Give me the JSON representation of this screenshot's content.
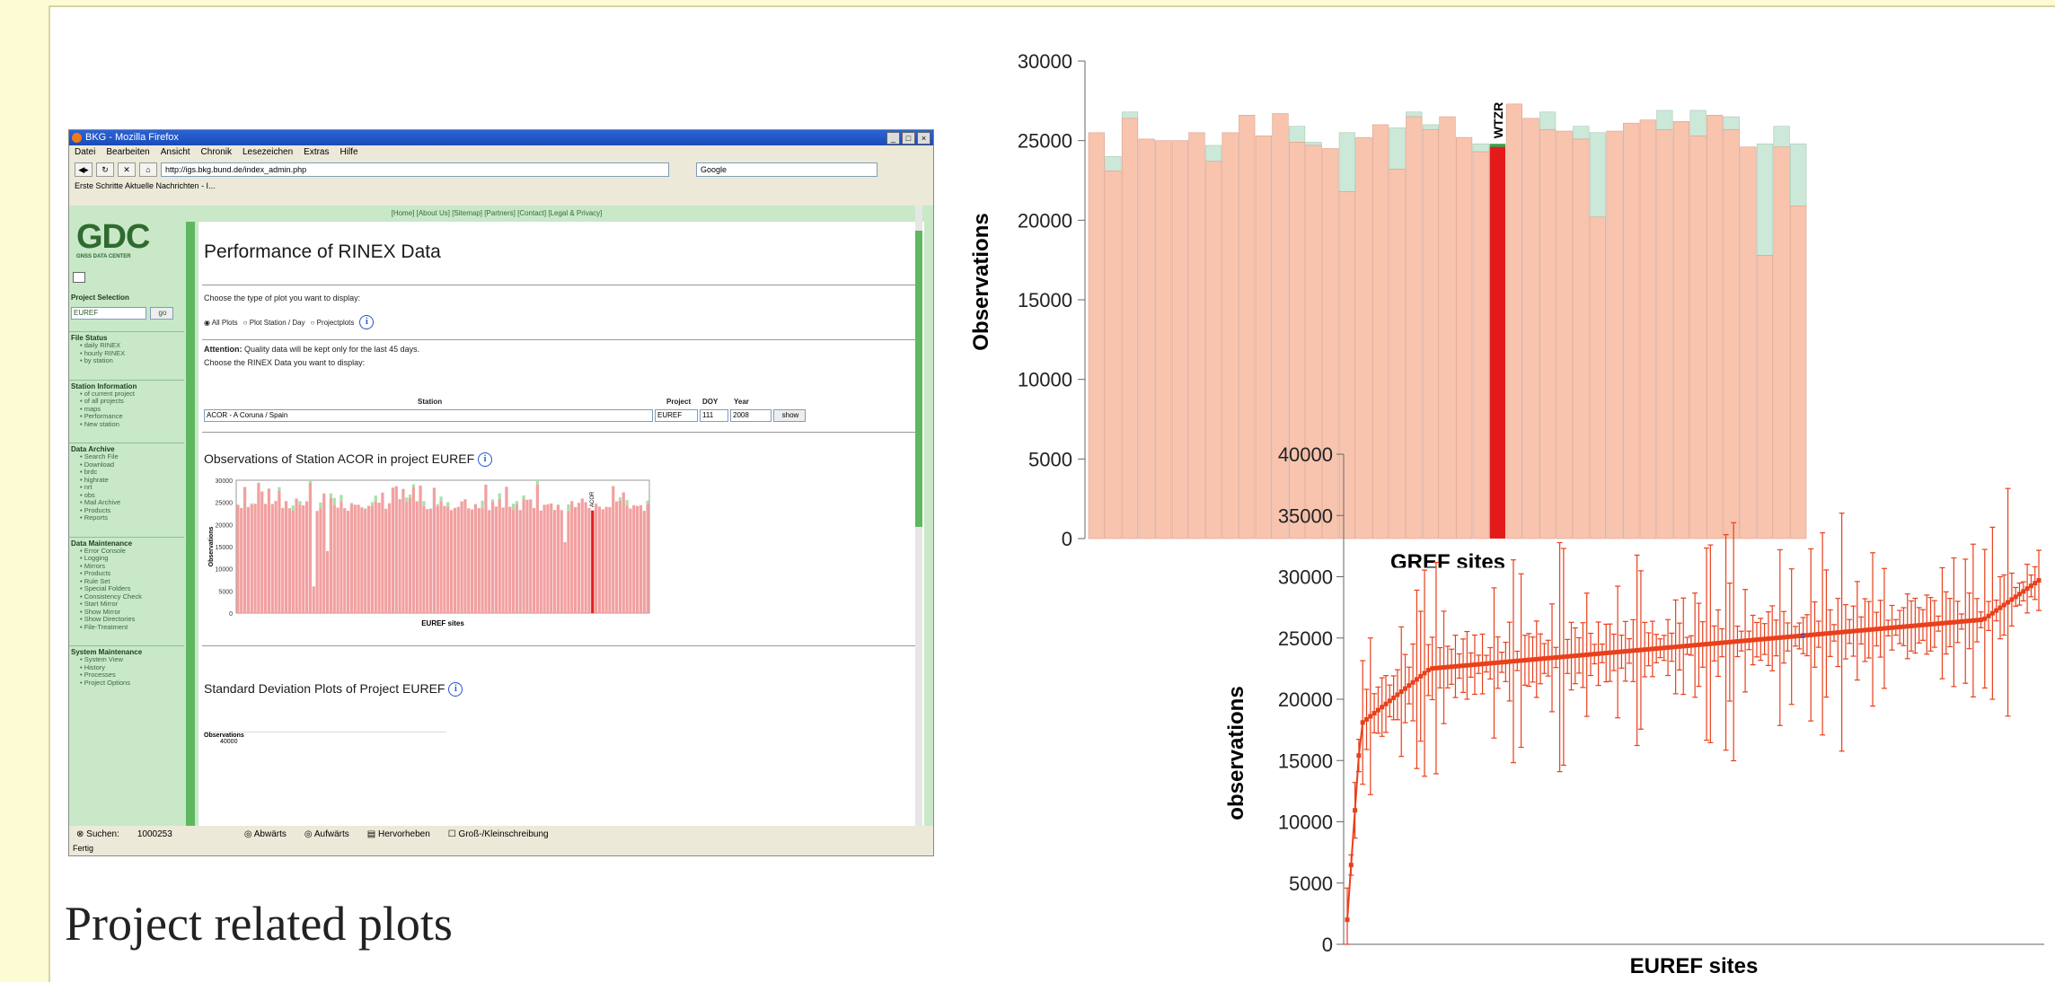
{
  "browser": {
    "window_title": "BKG - Mozilla Firefox",
    "menu": [
      "Datei",
      "Bearbeiten",
      "Ansicht",
      "Chronik",
      "Lesezeichen",
      "Extras",
      "Hilfe"
    ],
    "url": "http://igs.bkg.bund.de/index_admin.php",
    "search_placeholder": "Google",
    "bookmarks": "Erste Schritte   Aktuelle Nachrichten - I...",
    "top_links": "[Home]      [About Us]      [Sitemap]      [Partners]      [Contact]      [Legal & Privacy]",
    "logo": {
      "text": "GDC",
      "sub": "GNSS DATA CENTER"
    },
    "project_selection": {
      "heading": "Project Selection",
      "value": "EUREF",
      "go": "go"
    },
    "sidebar": [
      {
        "heading": "File Status",
        "items": [
          "daily RINEX",
          "hourly RINEX",
          "by station"
        ]
      },
      {
        "heading": "Station Information",
        "items": [
          "of current project",
          "of all projects",
          "maps",
          "Performance",
          "New station"
        ]
      },
      {
        "heading": "Data Archive",
        "items": [
          "Search File",
          "Download",
          "brdc",
          "highrate",
          "nrt",
          "obs",
          "Mail Archive",
          "Products",
          "Reports"
        ]
      },
      {
        "heading": "Data Maintenance",
        "items": [
          "Error Console",
          "Logging",
          "Mirrors",
          "Products",
          "Rule Set",
          "Special Folders",
          "Consistency Check",
          "Start Mirror",
          "Show Mirror",
          "Show Directories",
          "File-Treatment"
        ]
      },
      {
        "heading": "System Maintenance",
        "items": [
          "System View",
          "History",
          "Processes",
          "Project Options"
        ]
      }
    ],
    "page_title": "Performance of RINEX Data",
    "plot_type_prompt": "Choose the type of plot you want to display:",
    "plot_options": [
      "All Plots",
      "Plot Station / Day",
      "Projectplots"
    ],
    "attention_label": "Attention:",
    "attention_text": "Quality data will be kept only for the last 45 days.",
    "choose_text": "Choose the RINEX Data you want to display:",
    "col_station": "Station",
    "col_project": "Project",
    "col_doy": "DOY",
    "col_year": "Year",
    "station_value": "ACOR - A Coruna / Spain",
    "project_value": "EUREF",
    "doy_value": "111",
    "year_value": "2008",
    "show_button": "show",
    "obs_title": "Observations of Station ACOR in project EUREF",
    "mini_chart": {
      "ylabel": "Observations",
      "xlabel": "EUREF sites",
      "highlight": "ACOR",
      "yticks": [
        "0",
        "5000",
        "10000",
        "15000",
        "20000",
        "25000",
        "30000"
      ]
    },
    "std_title": "Standard Deviation Plots of Project EUREF",
    "std_ylabel": "Observations",
    "std_ytick": "40000",
    "status": {
      "search_label": "Suchen:",
      "search_value": "1000253",
      "down": "Abwärts",
      "up": "Aufwärts",
      "highlight": "Hervorheben",
      "case": "Groß-/Kleinschreibung",
      "done": "Fertig"
    }
  },
  "caption": "Project related plots",
  "chart_data": [
    {
      "type": "bar",
      "xlabel": "GREF sites",
      "ylabel": "Observations",
      "ylim": [
        0,
        30000
      ],
      "yticks": [
        0,
        5000,
        10000,
        15000,
        20000,
        25000,
        30000
      ],
      "highlight": {
        "label": "WTZR",
        "index": 24
      },
      "series": [
        {
          "name": "",
          "color": "#f8c4ae",
          "values": [
            25500,
            23100,
            26400,
            25100,
            25000,
            25000,
            25500,
            23700,
            25500,
            26600,
            25300,
            26700,
            24900,
            24700,
            24500,
            21800,
            25200,
            26000,
            23200,
            26500,
            25700,
            26500,
            25200,
            24300,
            24600,
            27300,
            26400,
            25700,
            25600,
            25100,
            20200,
            25600,
            26100,
            26300,
            25700,
            26200,
            25300,
            26600,
            25700,
            24600,
            17800,
            24600,
            20900
          ]
        },
        {
          "name": "",
          "color": "#cce8d8",
          "values": [
            25500,
            24000,
            26800,
            25100,
            25000,
            25000,
            25500,
            24700,
            25500,
            26600,
            25300,
            26700,
            25900,
            24900,
            24500,
            25500,
            25200,
            26000,
            25800,
            26800,
            26000,
            26500,
            25200,
            24800,
            24800,
            27300,
            26400,
            26800,
            25600,
            25900,
            25500,
            25600,
            26100,
            26300,
            26900,
            26200,
            26900,
            26600,
            26500,
            24600,
            24800,
            25900,
            24800
          ]
        }
      ]
    },
    {
      "type": "scatter",
      "xlabel": "EUREF sites",
      "ylabel": "observations",
      "ylim": [
        0,
        40000
      ],
      "yticks": [
        0,
        5000,
        10000,
        15000,
        20000,
        25000,
        30000,
        35000,
        40000
      ],
      "series": [
        {
          "name": "",
          "color": "#e8401c",
          "highlight_color": "#2244cc"
        }
      ]
    }
  ]
}
